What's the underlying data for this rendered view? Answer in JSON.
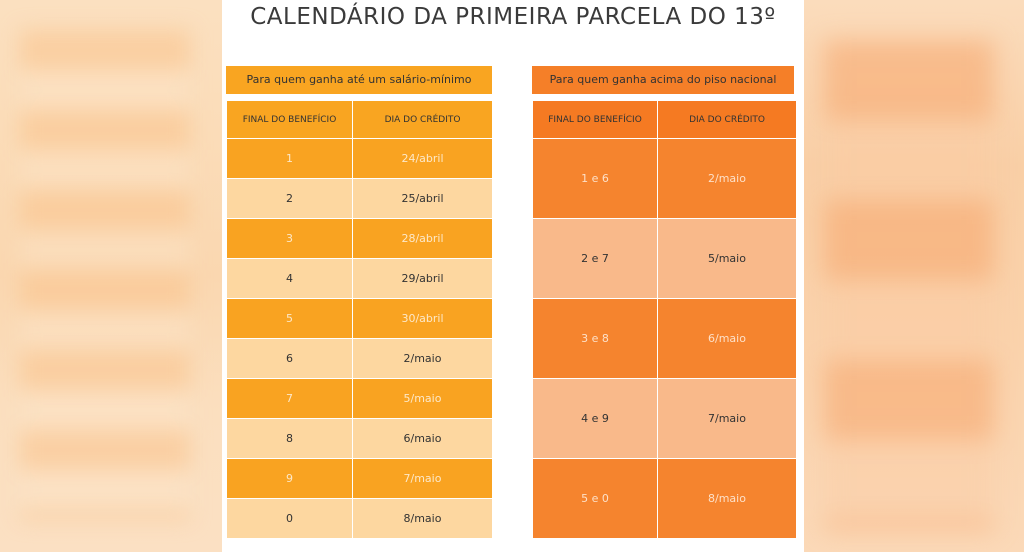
{
  "title": "CALENDÁRIO DA PRIMEIRA PARCELA DO 13º",
  "left": {
    "banner": "Para quem ganha até um salário-mínimo",
    "headers": [
      "FINAL DO BENEFÍCIO",
      "DIA DO CRÉDITO"
    ],
    "rows": [
      {
        "final": "1",
        "dia": "24/abril"
      },
      {
        "final": "2",
        "dia": "25/abril"
      },
      {
        "final": "3",
        "dia": "28/abril"
      },
      {
        "final": "4",
        "dia": "29/abril"
      },
      {
        "final": "5",
        "dia": "30/abril"
      },
      {
        "final": "6",
        "dia": "2/maio"
      },
      {
        "final": "7",
        "dia": "5/maio"
      },
      {
        "final": "8",
        "dia": "6/maio"
      },
      {
        "final": "9",
        "dia": "7/maio"
      },
      {
        "final": "0",
        "dia": "8/maio"
      }
    ]
  },
  "right": {
    "banner": "Para quem ganha acima do piso nacional",
    "headers": [
      "FINAL DO BENEFÍCIO",
      "DIA DO CRÉDITO"
    ],
    "rows": [
      {
        "final": "1 e 6",
        "dia": "2/maio"
      },
      {
        "final": "2 e 7",
        "dia": "5/maio"
      },
      {
        "final": "3 e 8",
        "dia": "6/maio"
      },
      {
        "final": "4 e 9",
        "dia": "7/maio"
      },
      {
        "final": "5 e 0",
        "dia": "8/maio"
      }
    ]
  },
  "colors": {
    "left_accent": "#f9a521",
    "left_light": "#fdd7a0",
    "right_accent": "#f57a22",
    "right_light": "#f9b98a"
  }
}
